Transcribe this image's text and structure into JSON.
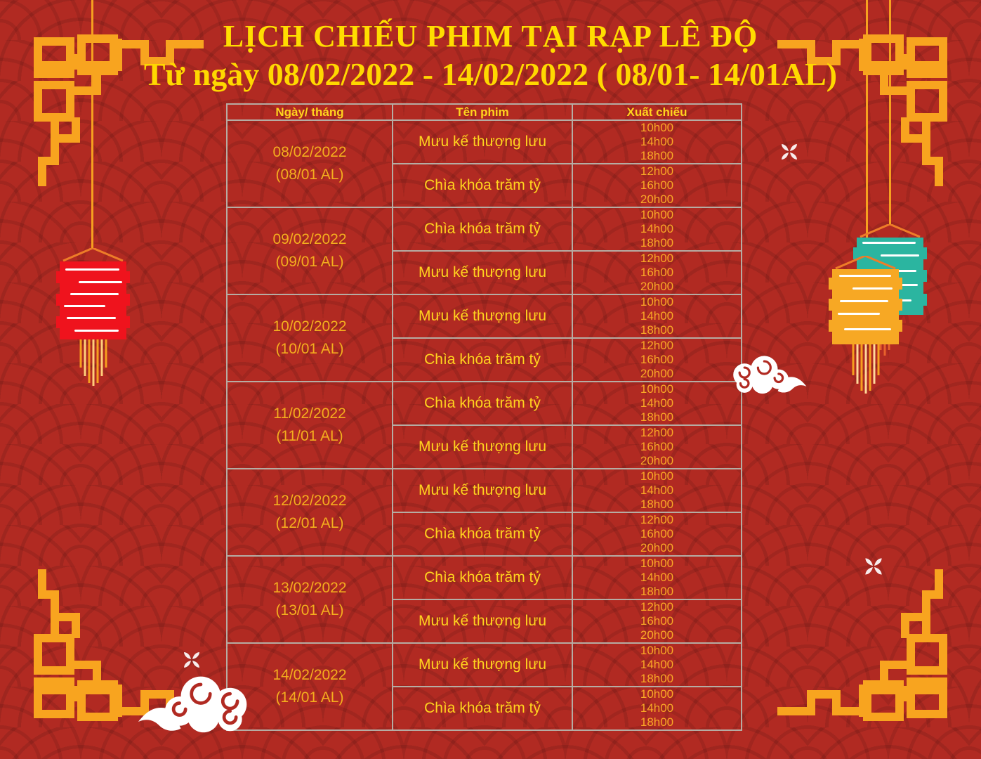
{
  "header": {
    "title": "LỊCH CHIẾU PHIM TẠI RẠP LÊ ĐỘ",
    "subtitle": "Từ ngày 08/02/2022 - 14/02/2022 ( 08/01- 14/01AL)"
  },
  "schedule": {
    "columns": [
      "Ngày/ tháng",
      "Tên phim",
      "Xuất chiếu"
    ],
    "groups": [
      {
        "date": "08/02/2022",
        "lunar": "(08/01 AL)",
        "movies": [
          {
            "name": "Mưu kế thượng lưu",
            "times": [
              "10h00",
              "14h00",
              "18h00"
            ]
          },
          {
            "name": "Chìa khóa trăm tỷ",
            "times": [
              "12h00",
              "16h00",
              "20h00"
            ]
          }
        ]
      },
      {
        "date": "09/02/2022",
        "lunar": "(09/01 AL)",
        "movies": [
          {
            "name": "Chìa khóa trăm tỷ",
            "times": [
              "10h00",
              "14h00",
              "18h00"
            ]
          },
          {
            "name": "Mưu kế thượng lưu",
            "times": [
              "12h00",
              "16h00",
              "20h00"
            ]
          }
        ]
      },
      {
        "date": "10/02/2022",
        "lunar": "(10/01 AL)",
        "movies": [
          {
            "name": "Mưu kế thượng lưu",
            "times": [
              "10h00",
              "14h00",
              "18h00"
            ]
          },
          {
            "name": "Chìa khóa trăm tỷ",
            "times": [
              "12h00",
              "16h00",
              "20h00"
            ]
          }
        ]
      },
      {
        "date": "11/02/2022",
        "lunar": "(11/01 AL)",
        "movies": [
          {
            "name": "Chìa khóa trăm tỷ",
            "times": [
              "10h00",
              "14h00",
              "18h00"
            ]
          },
          {
            "name": "Mưu kế thượng lưu",
            "times": [
              "12h00",
              "16h00",
              "20h00"
            ]
          }
        ]
      },
      {
        "date": "12/02/2022",
        "lunar": "(12/01 AL)",
        "movies": [
          {
            "name": "Mưu kế thượng lưu",
            "times": [
              "10h00",
              "14h00",
              "18h00"
            ]
          },
          {
            "name": "Chìa khóa trăm tỷ",
            "times": [
              "12h00",
              "16h00",
              "20h00"
            ]
          }
        ]
      },
      {
        "date": "13/02/2022",
        "lunar": "(13/01 AL)",
        "movies": [
          {
            "name": "Chìa khóa trăm tỷ",
            "times": [
              "10h00",
              "14h00",
              "18h00"
            ]
          },
          {
            "name": "Mưu kế thượng lưu",
            "times": [
              "12h00",
              "16h00",
              "20h00"
            ]
          }
        ]
      },
      {
        "date": "14/02/2022",
        "lunar": "(14/01 AL)",
        "movies": [
          {
            "name": "Mưu kế thượng lưu",
            "times": [
              "10h00",
              "14h00",
              "18h00"
            ]
          },
          {
            "name": "Chìa khóa trăm tỷ",
            "times": [
              "10h00",
              "14h00",
              "18h00"
            ]
          }
        ]
      }
    ]
  },
  "decor": {
    "icons": [
      "fretwork-corner-ornament",
      "paper-lantern",
      "spiral-cloud",
      "four-petal-sparkle"
    ],
    "lanterns": {
      "left": "red",
      "right_front": "orange",
      "right_back": "teal"
    }
  },
  "colors": {
    "background_red": "#b12a22",
    "pattern_red": "#9e241d",
    "ornament_orange": "#f8a41f",
    "title_yellow": "#ffdd00",
    "date_gold": "#f4ae1e",
    "movie_yellow": "#ffd41e",
    "time_orange": "#f9a826",
    "table_border_gray": "#b6aca3",
    "lantern_red": "#ef131d",
    "lantern_orange": "#f7a824",
    "lantern_teal": "#2bb5a0"
  }
}
